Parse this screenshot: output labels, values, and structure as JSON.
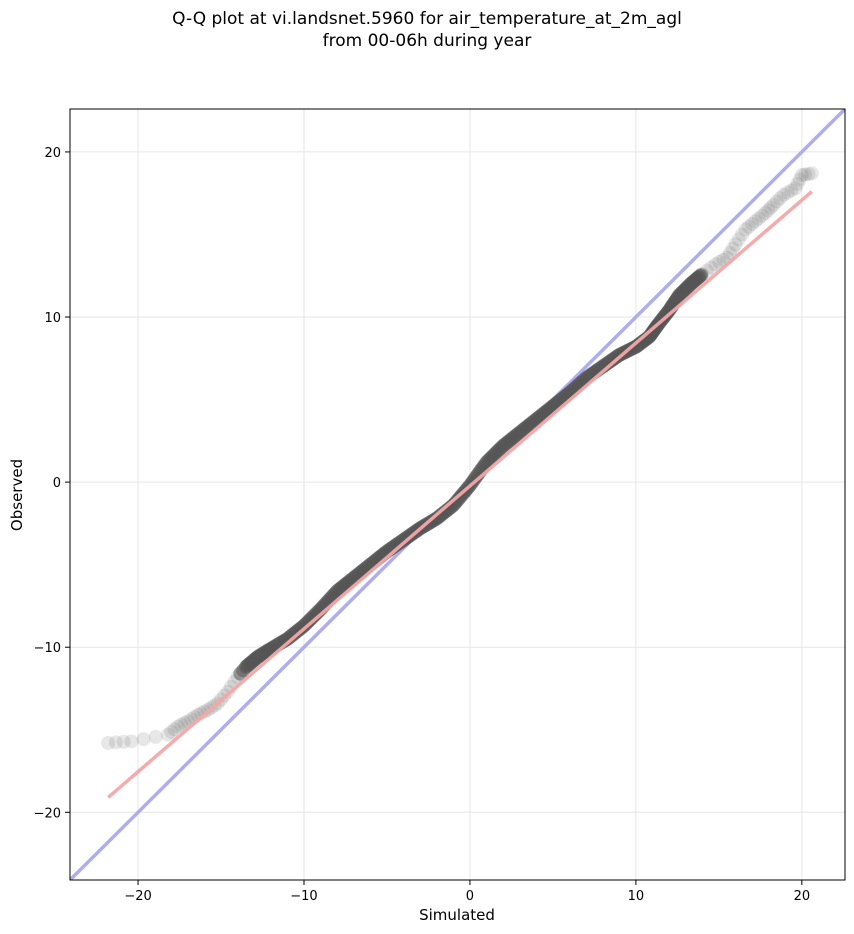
{
  "title_line1": "Q-Q plot at vi.landsnet.5960 for air_temperature_at_2m_agl",
  "title_line2": "from 00-06h during year",
  "chart_data": {
    "type": "scatter",
    "xlabel": "Simulated",
    "ylabel": "Observed",
    "xlim": [
      -24.1,
      22.6
    ],
    "ylim": [
      -24.1,
      22.6
    ],
    "xticks": [
      -20,
      -10,
      0,
      10,
      20
    ],
    "yticks": [
      -20,
      -10,
      0,
      10,
      20
    ],
    "xtick_labels": [
      "−20",
      "−10",
      "0",
      "10",
      "20"
    ],
    "ytick_labels": [
      "−20",
      "−10",
      "0",
      "10",
      "20"
    ],
    "grid": true,
    "identity_line": {
      "x": [
        -24.1,
        22.6
      ],
      "y": [
        -24.1,
        22.6
      ],
      "color": "#aaaaee"
    },
    "fit_line": {
      "x": [
        -21.8,
        20.6
      ],
      "y": [
        -19.1,
        17.6
      ],
      "color": "#f4a6a6"
    },
    "points": [
      [
        -21.8,
        -15.8
      ],
      [
        -20.4,
        -15.7
      ],
      [
        -18.2,
        -15.3
      ],
      [
        -17.6,
        -14.8
      ],
      [
        -17.0,
        -14.5
      ],
      [
        -16.4,
        -14.1
      ],
      [
        -15.8,
        -13.8
      ],
      [
        -15.2,
        -13.4
      ],
      [
        -14.6,
        -12.7
      ],
      [
        -14.0,
        -11.8
      ],
      [
        -13.5,
        -11.2
      ],
      [
        -12.8,
        -10.6
      ],
      [
        -12.0,
        -10.1
      ],
      [
        -11.0,
        -9.5
      ],
      [
        -10.0,
        -8.7
      ],
      [
        -9.0,
        -7.7
      ],
      [
        -8.0,
        -6.6
      ],
      [
        -7.0,
        -5.8
      ],
      [
        -6.0,
        -5.0
      ],
      [
        -5.0,
        -4.2
      ],
      [
        -4.0,
        -3.5
      ],
      [
        -3.0,
        -2.8
      ],
      [
        -2.0,
        -2.2
      ],
      [
        -1.0,
        -1.4
      ],
      [
        0.0,
        -0.2
      ],
      [
        1.0,
        1.2
      ],
      [
        2.0,
        2.2
      ],
      [
        3.0,
        3.0
      ],
      [
        4.0,
        3.8
      ],
      [
        5.0,
        4.6
      ],
      [
        6.0,
        5.4
      ],
      [
        7.0,
        6.3
      ],
      [
        8.0,
        7.0
      ],
      [
        9.0,
        7.7
      ],
      [
        10.0,
        8.2
      ],
      [
        10.8,
        8.8
      ],
      [
        11.3,
        9.5
      ],
      [
        12.0,
        10.4
      ],
      [
        12.6,
        11.3
      ],
      [
        13.3,
        12.0
      ],
      [
        14.0,
        12.6
      ],
      [
        14.8,
        13.2
      ],
      [
        15.5,
        13.6
      ],
      [
        16.0,
        14.4
      ],
      [
        16.6,
        15.3
      ],
      [
        17.2,
        15.8
      ],
      [
        17.8,
        16.3
      ],
      [
        18.3,
        16.8
      ],
      [
        18.9,
        17.4
      ],
      [
        19.6,
        17.8
      ],
      [
        20.0,
        18.6
      ],
      [
        20.6,
        18.7
      ]
    ]
  }
}
